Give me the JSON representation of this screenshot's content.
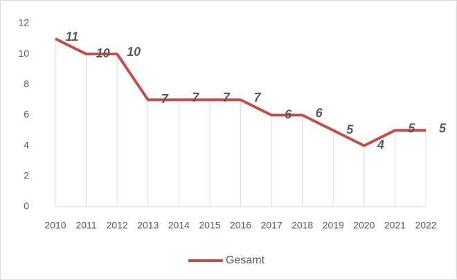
{
  "chart_data": {
    "type": "line",
    "categories": [
      "2010",
      "2011",
      "2012",
      "2013",
      "2014",
      "2015",
      "2016",
      "2017",
      "2018",
      "2019",
      "2020",
      "2021",
      "2022"
    ],
    "series": [
      {
        "name": "Gesamt",
        "color": "#c0504d",
        "values": [
          11,
          10,
          10,
          7,
          7,
          7,
          7,
          6,
          6,
          5,
          4,
          5,
          5
        ]
      }
    ],
    "ylim": [
      0,
      12
    ],
    "yticks": [
      0,
      2,
      4,
      6,
      8,
      10,
      12
    ],
    "drop_lines": true,
    "legend": "bottom"
  }
}
